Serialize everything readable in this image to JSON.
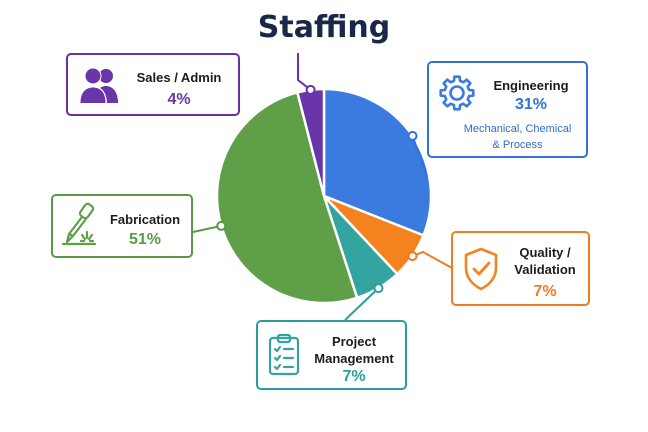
{
  "chart_data": {
    "type": "pie",
    "title": "Staffing",
    "slices": [
      {
        "label": "Engineering",
        "value": 31,
        "display": "31%",
        "color": "#3b7be0",
        "border": "#3371d8",
        "note_lines": [
          "Mechanical, Chemical",
          "& Process"
        ],
        "icon": "gear-icon"
      },
      {
        "label": "Quality / Validation",
        "value": 7,
        "display": "7%",
        "color": "#f5821f",
        "border": "#f07b21",
        "note_lines": [],
        "icon": "shield-check-icon"
      },
      {
        "label": "Project Management",
        "value": 7,
        "display": "7%",
        "color": "#33a4a0",
        "border": "#2a9e9c",
        "note_lines": [],
        "icon": "clipboard-checklist-icon"
      },
      {
        "label": "Fabrication",
        "value": 51,
        "display": "51%",
        "color": "#5e9f48",
        "border": "#5b9a45",
        "note_lines": [],
        "icon": "welding-torch-icon"
      },
      {
        "label": "Sales / Admin",
        "value": 4,
        "display": "4%",
        "color": "#6a35a8",
        "border": "#6b2fa7",
        "note_lines": [],
        "icon": "users-icon"
      }
    ]
  },
  "cards": {
    "sales": {
      "name": "Sales / Admin",
      "pct": "4%"
    },
    "engineering": {
      "name": "Engineering",
      "pct": "31%",
      "note_1": "Mechanical, Chemical",
      "note_2": "& Process"
    },
    "fabrication": {
      "name": "Fabrication",
      "pct": "51%"
    },
    "quality": {
      "name_1": "Quality /",
      "name_2": "Validation",
      "pct": "7%"
    },
    "project": {
      "name_1": "Project",
      "name_2": "Management",
      "pct": "7%"
    }
  },
  "colors": {
    "title": "#1a2748",
    "engineering": "#3b7be0",
    "quality": "#f5821f",
    "project": "#33a4a0",
    "fabrication": "#5e9f48",
    "sales": "#6a35a8"
  }
}
